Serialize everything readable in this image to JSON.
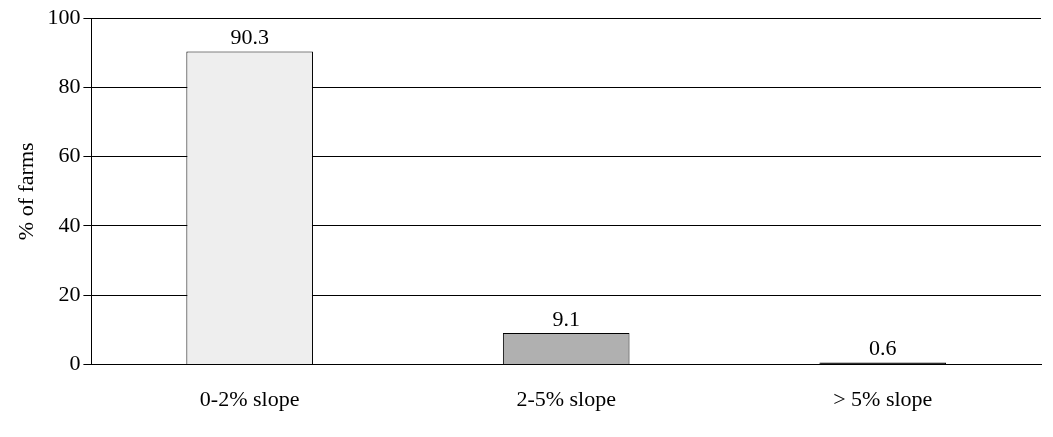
{
  "chart_data": {
    "type": "bar",
    "ylabel": "% of farms",
    "categories": [
      "0-2% slope",
      "2-5% slope",
      "> 5% slope"
    ],
    "values": [
      90.3,
      9.1,
      0.6
    ],
    "colors": [
      "#eeeeee",
      "#b0b0b0",
      "#000000"
    ],
    "ylim": [
      0,
      100
    ],
    "yticks": [
      0,
      20,
      40,
      60,
      80,
      100
    ],
    "grid": "y",
    "data_labels": true
  }
}
